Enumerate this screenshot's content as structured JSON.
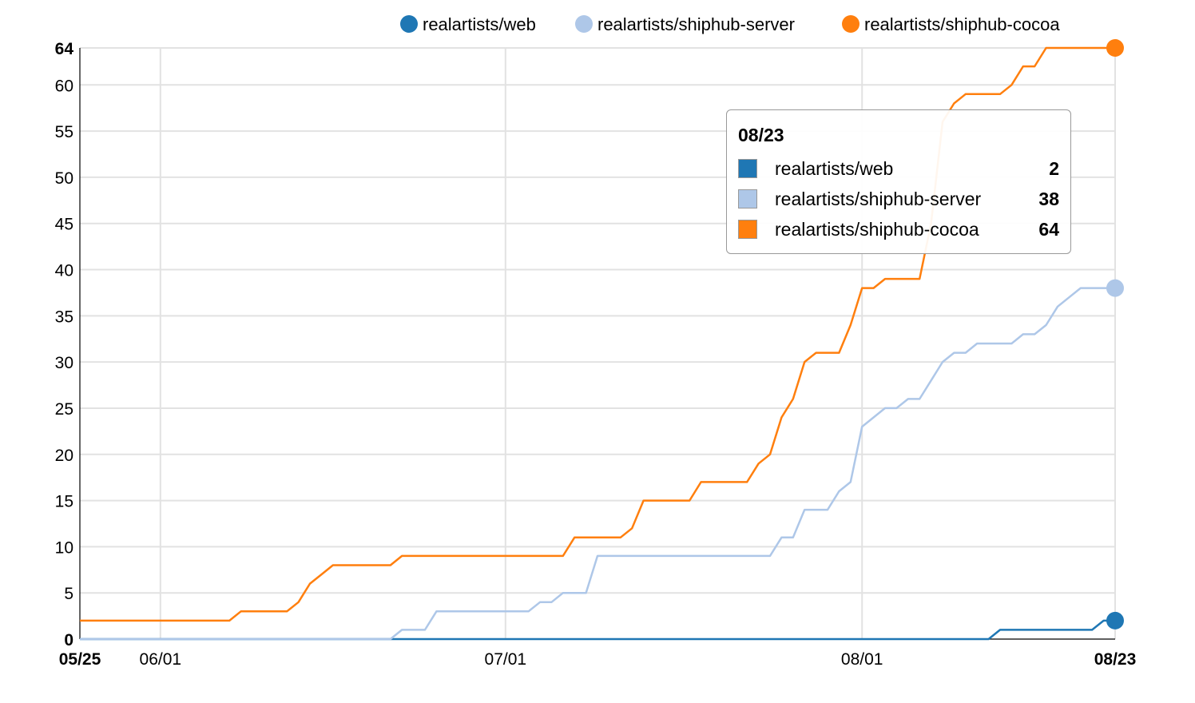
{
  "chart_data": {
    "type": "line",
    "x_axis": {
      "type": "date",
      "tick_labels": [
        "05/25",
        "06/01",
        "07/01",
        "08/01",
        "08/23"
      ],
      "bold_ticks": [
        "05/25",
        "08/23"
      ],
      "range": [
        "05/25",
        "08/23"
      ]
    },
    "y_axis": {
      "tick_labels": [
        "0",
        "5",
        "10",
        "15",
        "20",
        "25",
        "30",
        "35",
        "40",
        "45",
        "50",
        "55",
        "60",
        "64"
      ],
      "bold_ticks": [
        "0",
        "64"
      ],
      "range": [
        0,
        64
      ]
    },
    "grid": true,
    "legend_position": "top-right",
    "series": [
      {
        "name": "realartists/web",
        "color": "#1f77b4",
        "points": [
          [
            "05/25",
            0
          ],
          [
            "08/12",
            0
          ],
          [
            "08/13",
            1
          ],
          [
            "08/21",
            1
          ],
          [
            "08/22",
            2
          ],
          [
            "08/23",
            2
          ]
        ]
      },
      {
        "name": "realartists/shiphub-server",
        "color": "#aec7e8",
        "points": [
          [
            "05/25",
            0
          ],
          [
            "06/21",
            0
          ],
          [
            "06/22",
            1
          ],
          [
            "06/24",
            1
          ],
          [
            "06/25",
            3
          ],
          [
            "07/03",
            3
          ],
          [
            "07/04",
            4
          ],
          [
            "07/05",
            4
          ],
          [
            "07/06",
            5
          ],
          [
            "07/08",
            5
          ],
          [
            "07/09",
            9
          ],
          [
            "07/24",
            9
          ],
          [
            "07/25",
            11
          ],
          [
            "07/26",
            11
          ],
          [
            "07/27",
            14
          ],
          [
            "07/29",
            14
          ],
          [
            "07/30",
            16
          ],
          [
            "07/31",
            17
          ],
          [
            "08/01",
            23
          ],
          [
            "08/02",
            24
          ],
          [
            "08/03",
            25
          ],
          [
            "08/04",
            25
          ],
          [
            "08/05",
            26
          ],
          [
            "08/06",
            26
          ],
          [
            "08/07",
            28
          ],
          [
            "08/08",
            30
          ],
          [
            "08/09",
            31
          ],
          [
            "08/10",
            31
          ],
          [
            "08/11",
            32
          ],
          [
            "08/14",
            32
          ],
          [
            "08/15",
            33
          ],
          [
            "08/16",
            33
          ],
          [
            "08/17",
            34
          ],
          [
            "08/18",
            36
          ],
          [
            "08/19",
            37
          ],
          [
            "08/20",
            38
          ],
          [
            "08/23",
            38
          ]
        ]
      },
      {
        "name": "realartists/shiphub-cocoa",
        "color": "#ff7f0e",
        "points": [
          [
            "05/25",
            2
          ],
          [
            "06/07",
            2
          ],
          [
            "06/08",
            3
          ],
          [
            "06/12",
            3
          ],
          [
            "06/13",
            4
          ],
          [
            "06/14",
            6
          ],
          [
            "06/15",
            7
          ],
          [
            "06/16",
            8
          ],
          [
            "06/21",
            8
          ],
          [
            "06/22",
            9
          ],
          [
            "07/06",
            9
          ],
          [
            "07/07",
            11
          ],
          [
            "07/11",
            11
          ],
          [
            "07/12",
            12
          ],
          [
            "07/13",
            15
          ],
          [
            "07/17",
            15
          ],
          [
            "07/18",
            17
          ],
          [
            "07/22",
            17
          ],
          [
            "07/23",
            19
          ],
          [
            "07/24",
            20
          ],
          [
            "07/25",
            24
          ],
          [
            "07/26",
            26
          ],
          [
            "07/27",
            30
          ],
          [
            "07/28",
            31
          ],
          [
            "07/30",
            31
          ],
          [
            "07/31",
            34
          ],
          [
            "08/01",
            38
          ],
          [
            "08/02",
            38
          ],
          [
            "08/03",
            39
          ],
          [
            "08/06",
            39
          ],
          [
            "08/07",
            45
          ],
          [
            "08/08",
            56
          ],
          [
            "08/09",
            58
          ],
          [
            "08/10",
            59
          ],
          [
            "08/13",
            59
          ],
          [
            "08/14",
            60
          ],
          [
            "08/15",
            62
          ],
          [
            "08/16",
            62
          ],
          [
            "08/17",
            64
          ],
          [
            "08/23",
            64
          ]
        ]
      }
    ]
  },
  "tooltip": {
    "date": "08/23",
    "rows": [
      {
        "name": "realartists/web",
        "value": "2",
        "color": "#1f77b4"
      },
      {
        "name": "realartists/shiphub-server",
        "value": "38",
        "color": "#aec7e8"
      },
      {
        "name": "realartists/shiphub-cocoa",
        "value": "64",
        "color": "#ff7f0e"
      }
    ]
  }
}
